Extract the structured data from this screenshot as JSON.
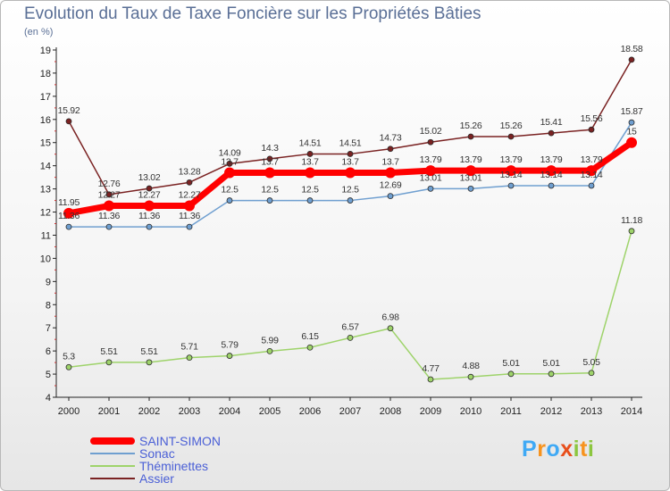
{
  "chart_data": {
    "type": "line",
    "title": "Evolution du Taux de Taxe Foncière sur les Propriétés Bâties",
    "unit_label": "(en %)",
    "xlabel": "",
    "ylabel": "",
    "ylim": [
      4,
      19
    ],
    "yticks": [
      4,
      5,
      6,
      7,
      8,
      9,
      10,
      11,
      12,
      13,
      14,
      15,
      16,
      17,
      18,
      19
    ],
    "categories": [
      "2000",
      "2001",
      "2002",
      "2003",
      "2004",
      "2005",
      "2006",
      "2007",
      "2008",
      "2009",
      "2010",
      "2011",
      "2012",
      "2013",
      "2014"
    ],
    "series": [
      {
        "name": "SAINT-SIMON",
        "color": "#ff0000",
        "values": [
          11.95,
          12.27,
          12.27,
          12.27,
          13.7,
          13.7,
          13.7,
          13.7,
          13.7,
          13.79,
          13.79,
          13.79,
          13.79,
          13.79,
          15
        ],
        "labels": [
          "11.95",
          "12.27",
          "12.27",
          "12.27",
          "13.7",
          "13.7",
          "13.7",
          "13.7",
          "13.7",
          "13.79",
          "13.79",
          "13.79",
          "13.79",
          "13.79",
          "15"
        ]
      },
      {
        "name": "Sonac",
        "color": "#6f9fd0",
        "values": [
          11.36,
          11.36,
          11.36,
          11.36,
          12.5,
          12.5,
          12.5,
          12.5,
          12.69,
          13.01,
          13.01,
          13.14,
          13.14,
          13.14,
          15.87
        ],
        "labels": [
          "11.36",
          "11.36",
          "11.36",
          "11.36",
          "12.5",
          "12.5",
          "12.5",
          "12.5",
          "12.69",
          "13.01",
          "13.01",
          "13.14",
          "13.14",
          "13.14",
          "15.87"
        ]
      },
      {
        "name": "Théminettes",
        "color": "#9ed36a",
        "values": [
          5.3,
          5.51,
          5.51,
          5.71,
          5.79,
          5.99,
          6.15,
          6.57,
          6.98,
          4.77,
          4.88,
          5.01,
          5.01,
          5.05,
          11.18
        ],
        "labels": [
          "5.3",
          "5.51",
          "5.51",
          "5.71",
          "5.79",
          "5.99",
          "6.15",
          "6.57",
          "6.98",
          "4.77",
          "4.88",
          "5.01",
          "5.01",
          "5.05",
          "11.18"
        ]
      },
      {
        "name": "Assier",
        "color": "#7a2222",
        "values": [
          15.92,
          12.76,
          13.02,
          13.28,
          14.09,
          14.3,
          14.51,
          14.51,
          14.73,
          15.02,
          15.26,
          15.26,
          15.41,
          15.56,
          18.58
        ],
        "labels": [
          "15.92",
          "12.76",
          "13.02",
          "13.28",
          "14.09",
          "14.3",
          "14.51",
          "14.51",
          "14.73",
          "15.02",
          "15.26",
          "15.26",
          "15.41",
          "15.56",
          "18.58"
        ]
      }
    ],
    "legend_position": "bottom-left"
  },
  "logo": {
    "text": "Proxiti",
    "letters": [
      "P",
      "r",
      "o",
      "x",
      "i",
      "t",
      "i"
    ],
    "letter_colors": [
      "#3fa9f5",
      "#f7931e",
      "#3fa9f5",
      "#e84e1b",
      "#8cc63f",
      "#f7931e",
      "#8cc63f"
    ]
  }
}
